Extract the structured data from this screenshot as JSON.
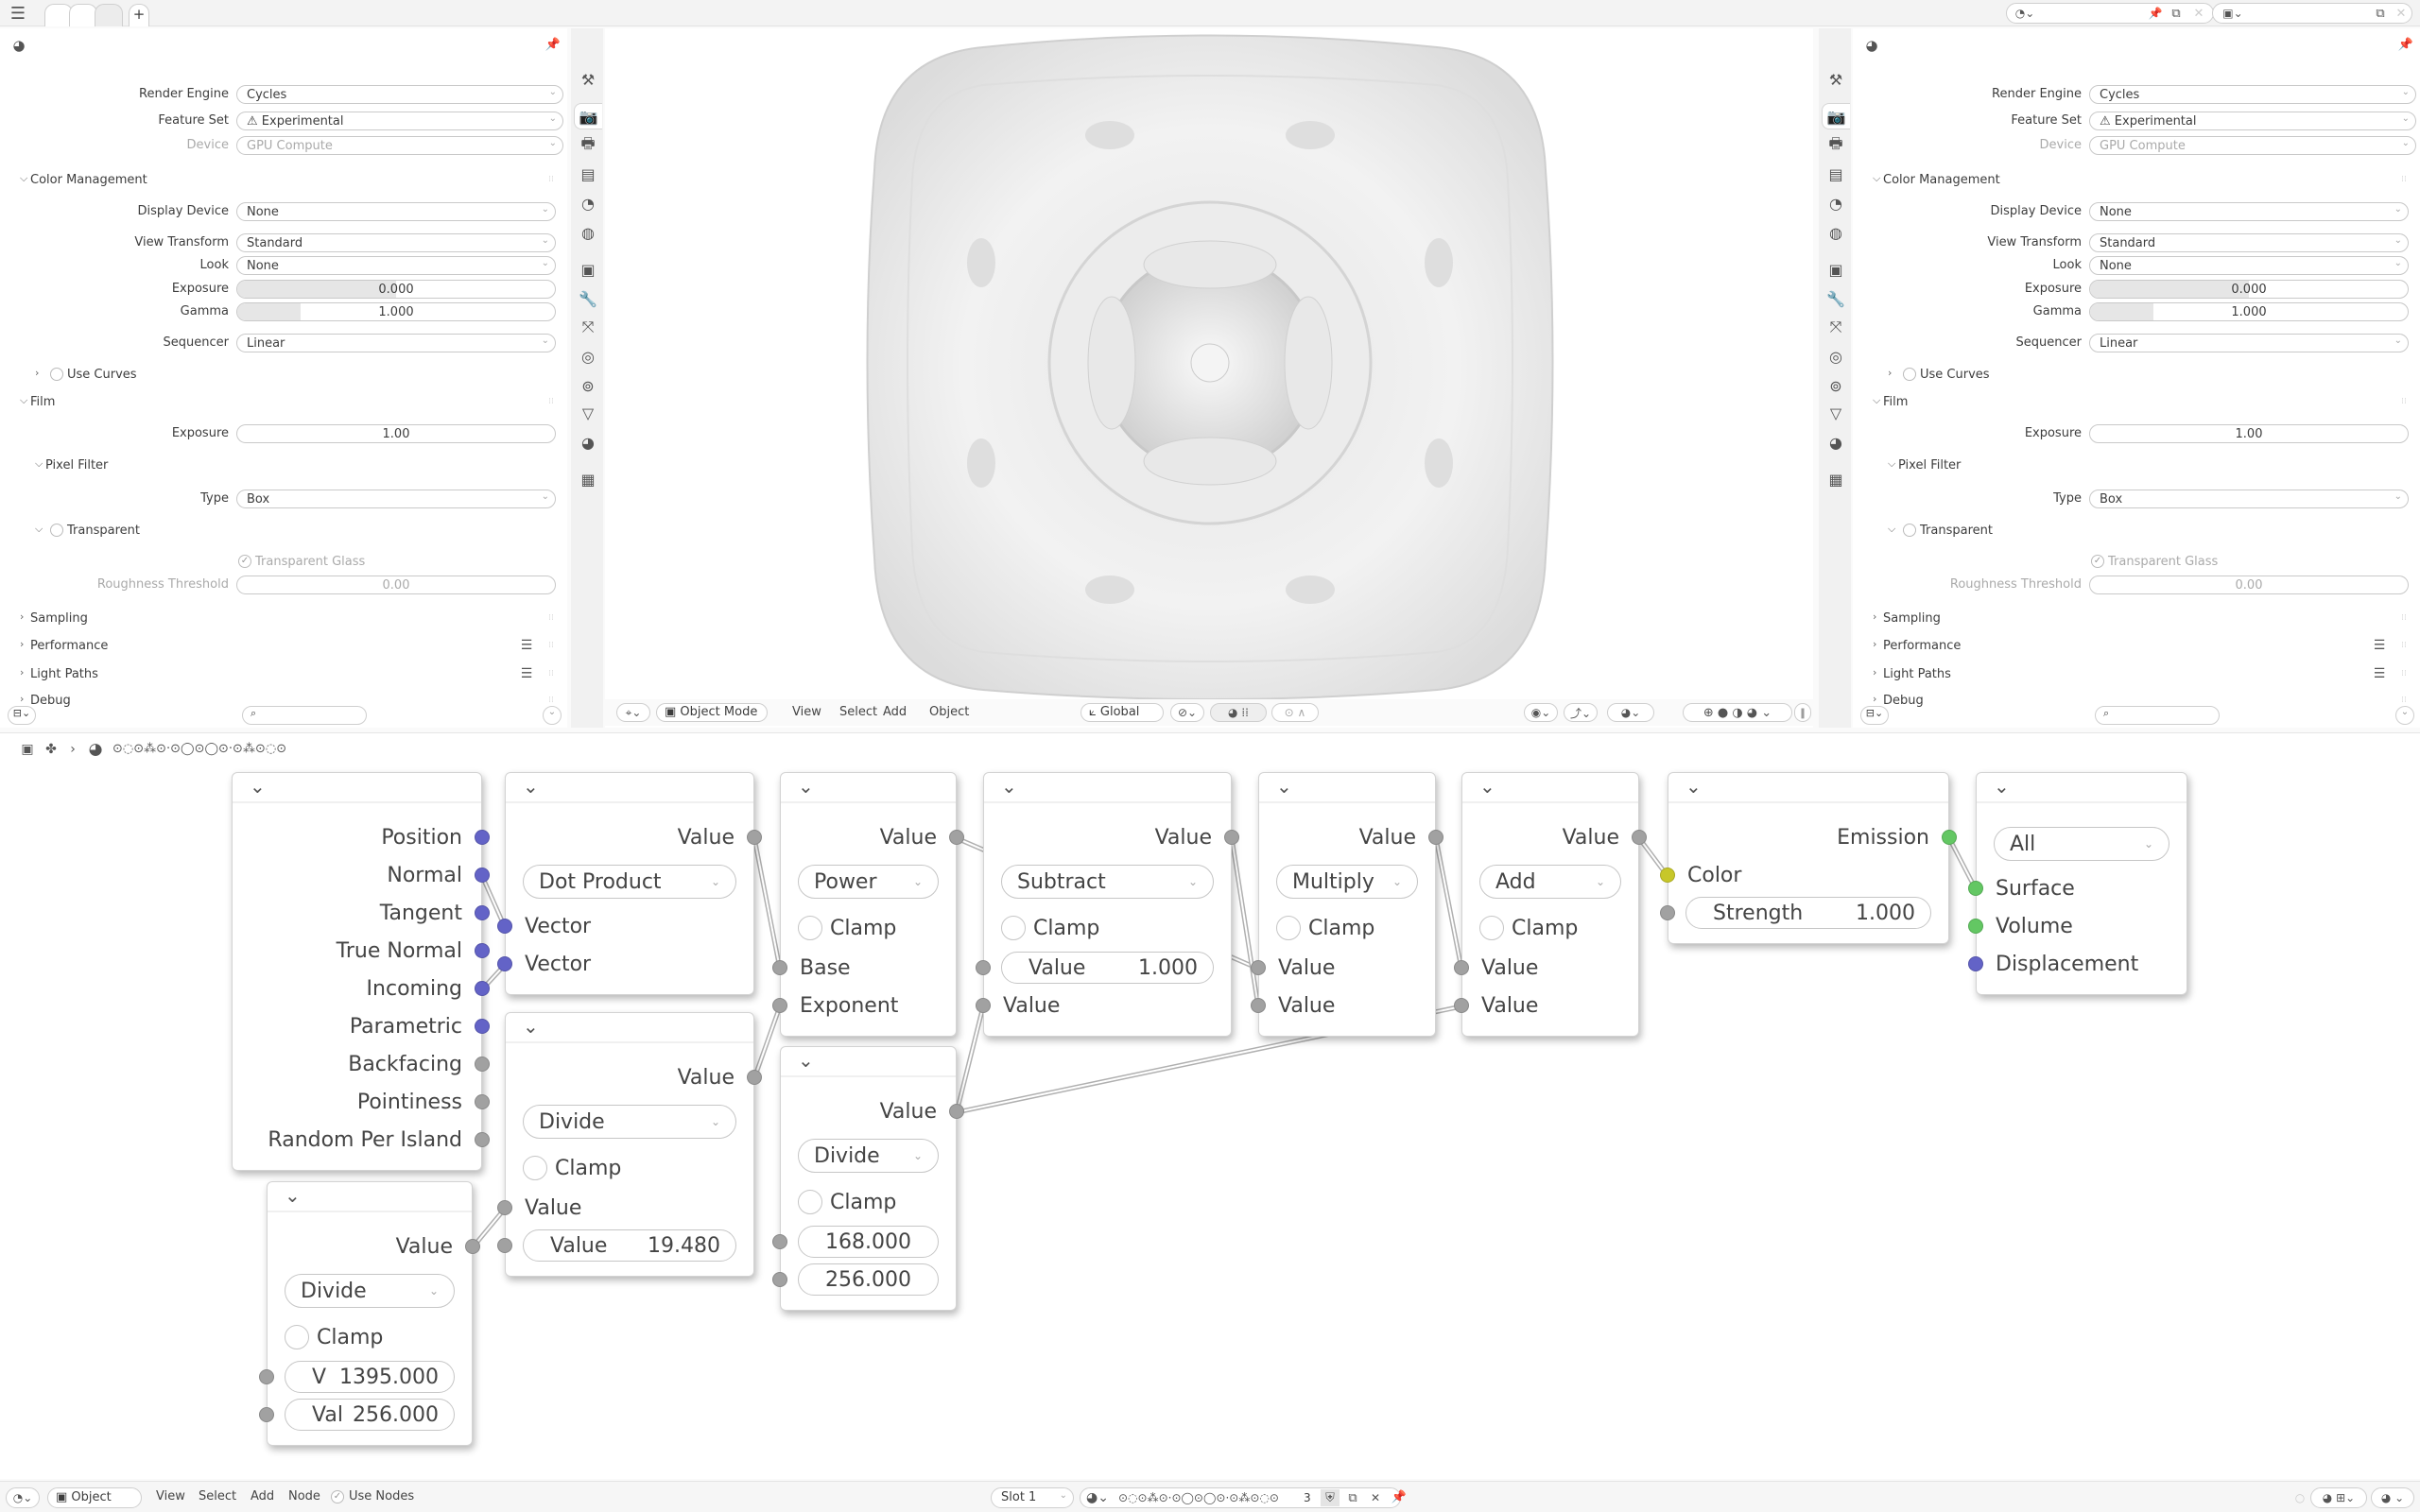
{
  "topbar": {
    "menu_icon": "hamburger-icon",
    "add_tab_label": "+",
    "right_icons": [
      "material-icon",
      "pin-icon",
      "copy-icon",
      "close-icon",
      "image-icon",
      "copy-icon",
      "close-icon"
    ]
  },
  "properties": {
    "header_icon": "material-icon",
    "rows": [
      {
        "type": "select",
        "label": "Render Engine",
        "value": "Cycles"
      },
      {
        "type": "select",
        "label": "Feature Set",
        "value": "Experimental",
        "icon": "warning-icon"
      },
      {
        "type": "select",
        "label": "Device",
        "value": "GPU Compute",
        "disabled": true
      },
      {
        "type": "section",
        "label": "Color Management",
        "open": true,
        "level": 0
      },
      {
        "type": "select",
        "label": "Display Device",
        "value": "None",
        "indent": true
      },
      {
        "type": "select",
        "label": "View Transform",
        "value": "Standard",
        "indent": true
      },
      {
        "type": "select",
        "label": "Look",
        "value": "None",
        "indent": true
      },
      {
        "type": "slider",
        "label": "Exposure",
        "value": "0.000",
        "fill": 0.5,
        "indent": true
      },
      {
        "type": "slider",
        "label": "Gamma",
        "value": "1.000",
        "fill": 0.2,
        "indent": true
      },
      {
        "type": "select",
        "label": "Sequencer",
        "value": "Linear",
        "indent": true
      },
      {
        "type": "section",
        "label": "Use Curves",
        "open": false,
        "level": 1,
        "checkbox": true
      },
      {
        "type": "section",
        "label": "Film",
        "open": true,
        "level": 0
      },
      {
        "type": "slider",
        "label": "Exposure",
        "value": "1.00",
        "fill": 0,
        "indent": true
      },
      {
        "type": "section",
        "label": "Pixel Filter",
        "open": true,
        "level": 1
      },
      {
        "type": "select",
        "label": "Type",
        "value": "Box",
        "indent": true
      },
      {
        "type": "section",
        "label": "Transparent",
        "open": true,
        "level": 1,
        "checkbox": true
      },
      {
        "type": "checkbox",
        "label": "Transparent Glass",
        "checked": true,
        "disabled": true
      },
      {
        "type": "slider",
        "label": "Roughness Threshold",
        "value": "0.00",
        "fill": 0,
        "disabled": true,
        "indent": true
      },
      {
        "type": "section",
        "label": "Sampling",
        "open": false,
        "level": 0
      },
      {
        "type": "section",
        "label": "Performance",
        "open": false,
        "level": 0,
        "list": true
      },
      {
        "type": "section",
        "label": "Light Paths",
        "open": false,
        "level": 0,
        "list": true
      },
      {
        "type": "section",
        "label": "Debug",
        "open": false,
        "level": 0
      }
    ],
    "tabs": [
      "tool",
      "render",
      "output",
      "view-layer",
      "scene",
      "world",
      "object",
      "modifier",
      "particles",
      "physics",
      "constraints",
      "data",
      "material",
      "texture"
    ],
    "active_tab": 1,
    "search_placeholder": ""
  },
  "viewport": {
    "mode": "Object Mode",
    "menus": [
      "View",
      "Select",
      "Add",
      "Object"
    ],
    "orientation": "Global"
  },
  "node_editor": {
    "material_name": "⊙◌⊙⁂⊙·⊙◯⊙◯⊙·⊙⁂⊙◌⊙",
    "socket_colors": {
      "vector": "#6363c7",
      "float": "#a1a1a1",
      "shader": "#63c763",
      "color": "#c7c729"
    },
    "nodes": [
      {
        "id": "geometry",
        "rows": [
          {
            "t": "out",
            "label": "Position",
            "s": "vector"
          },
          {
            "t": "out",
            "label": "Normal",
            "s": "vector"
          },
          {
            "t": "out",
            "label": "Tangent",
            "s": "vector"
          },
          {
            "t": "out",
            "label": "True Normal",
            "s": "vector"
          },
          {
            "t": "out",
            "label": "Incoming",
            "s": "vector"
          },
          {
            "t": "out",
            "label": "Parametric",
            "s": "vector"
          },
          {
            "t": "out",
            "label": "Backfacing",
            "s": "float"
          },
          {
            "t": "out",
            "label": "Pointiness",
            "s": "float"
          },
          {
            "t": "out",
            "label": "Random Per Island",
            "s": "float"
          }
        ]
      },
      {
        "id": "dot",
        "rows": [
          {
            "t": "out",
            "label": "Value",
            "s": "float"
          },
          {
            "t": "dd",
            "label": "Dot Product"
          },
          {
            "t": "in",
            "label": "Vector",
            "s": "vector"
          },
          {
            "t": "in",
            "label": "Vector",
            "s": "vector"
          }
        ]
      },
      {
        "id": "div1",
        "rows": [
          {
            "t": "out",
            "label": "Value",
            "s": "float"
          },
          {
            "t": "dd",
            "label": "Divide"
          },
          {
            "t": "cb",
            "label": "Clamp"
          },
          {
            "t": "in",
            "label": "Value",
            "s": "float"
          },
          {
            "t": "field",
            "label": "Value",
            "value": "19.480",
            "s": "float"
          }
        ]
      },
      {
        "id": "div2",
        "rows": [
          {
            "t": "out",
            "label": "Value",
            "s": "float"
          },
          {
            "t": "dd",
            "label": "Divide"
          },
          {
            "t": "cb",
            "label": "Clamp"
          },
          {
            "t": "field",
            "label": "V",
            "value": "1395.000",
            "s": "float"
          },
          {
            "t": "field",
            "label": "Val",
            "value": "256.000",
            "s": "float"
          }
        ]
      },
      {
        "id": "power",
        "rows": [
          {
            "t": "out",
            "label": "Value",
            "s": "float"
          },
          {
            "t": "dd",
            "label": "Power"
          },
          {
            "t": "cb",
            "label": "Clamp"
          },
          {
            "t": "in",
            "label": "Base",
            "s": "float"
          },
          {
            "t": "in",
            "label": "Exponent",
            "s": "float"
          }
        ]
      },
      {
        "id": "div3",
        "rows": [
          {
            "t": "out",
            "label": "Value",
            "s": "float"
          },
          {
            "t": "dd",
            "label": "Divide"
          },
          {
            "t": "cb",
            "label": "Clamp"
          },
          {
            "t": "field",
            "label": "",
            "value": "168.000",
            "s": "float"
          },
          {
            "t": "field",
            "label": "",
            "value": "256.000",
            "s": "float"
          }
        ]
      },
      {
        "id": "subtract",
        "rows": [
          {
            "t": "out",
            "label": "Value",
            "s": "float"
          },
          {
            "t": "dd",
            "label": "Subtract"
          },
          {
            "t": "cb",
            "label": "Clamp"
          },
          {
            "t": "field",
            "label": "Value",
            "value": "1.000",
            "s": "float"
          },
          {
            "t": "in",
            "label": "Value",
            "s": "float"
          }
        ]
      },
      {
        "id": "multiply",
        "rows": [
          {
            "t": "out",
            "label": "Value",
            "s": "float"
          },
          {
            "t": "dd",
            "label": "Multiply"
          },
          {
            "t": "cb",
            "label": "Clamp"
          },
          {
            "t": "in",
            "label": "Value",
            "s": "float"
          },
          {
            "t": "in",
            "label": "Value",
            "s": "float"
          }
        ]
      },
      {
        "id": "add",
        "rows": [
          {
            "t": "out",
            "label": "Value",
            "s": "float"
          },
          {
            "t": "dd",
            "label": "Add"
          },
          {
            "t": "cb",
            "label": "Clamp"
          },
          {
            "t": "in",
            "label": "Value",
            "s": "float"
          },
          {
            "t": "in",
            "label": "Value",
            "s": "float"
          }
        ]
      },
      {
        "id": "emission",
        "rows": [
          {
            "t": "out",
            "label": "Emission",
            "s": "shader"
          },
          {
            "t": "in",
            "label": "Color",
            "s": "color"
          },
          {
            "t": "field",
            "label": "Strength",
            "value": "1.000",
            "s": "float"
          }
        ]
      },
      {
        "id": "output",
        "rows": [
          {
            "t": "dd",
            "label": "All"
          },
          {
            "t": "in",
            "label": "Surface",
            "s": "shader"
          },
          {
            "t": "in",
            "label": "Volume",
            "s": "shader"
          },
          {
            "t": "in",
            "label": "Displacement",
            "s": "vector"
          }
        ]
      }
    ],
    "links": [
      {
        "from": [
          "geometry",
          1
        ],
        "to": [
          "dot",
          2
        ]
      },
      {
        "from": [
          "geometry",
          4
        ],
        "to": [
          "dot",
          3
        ]
      },
      {
        "from": [
          "dot",
          0
        ],
        "to": [
          "power",
          3
        ]
      },
      {
        "from": [
          "div1",
          0
        ],
        "to": [
          "power",
          4
        ]
      },
      {
        "from": [
          "div2",
          0
        ],
        "to": [
          "div1",
          3
        ]
      },
      {
        "from": [
          "power",
          0
        ],
        "to": [
          "multiply",
          3
        ]
      },
      {
        "from": [
          "subtract",
          0
        ],
        "to": [
          "multiply",
          4
        ]
      },
      {
        "from": [
          "div3",
          0
        ],
        "to": [
          "subtract",
          4
        ]
      },
      {
        "from": [
          "div3",
          0
        ],
        "to": [
          "add",
          4
        ]
      },
      {
        "from": [
          "multiply",
          0
        ],
        "to": [
          "add",
          3
        ]
      },
      {
        "from": [
          "add",
          0
        ],
        "to": [
          "emission",
          1
        ]
      },
      {
        "from": [
          "emission",
          0
        ],
        "to": [
          "output",
          1
        ]
      }
    ]
  },
  "node_bottom_bar": {
    "mode": "Object",
    "menus": [
      "View",
      "Select",
      "Add",
      "Node"
    ],
    "use_nodes_label": "Use Nodes",
    "use_nodes": true,
    "slot": "Slot 1",
    "material_name": "⊙◌⊙⁂⊙·⊙◯⊙◯⊙·⊙⁂⊙◌⊙",
    "users": "3"
  }
}
